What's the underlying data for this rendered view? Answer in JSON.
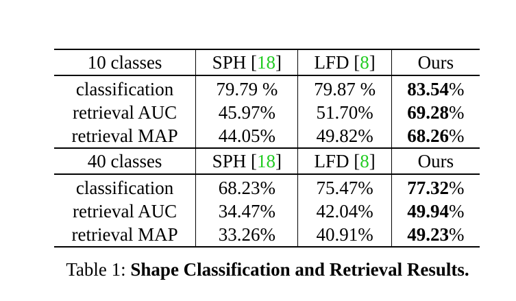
{
  "tables": [
    {
      "header": {
        "label": "10 classes",
        "sph": "SPH [",
        "sph_ref": "18",
        "sph_close": "]",
        "lfd": "LFD [",
        "lfd_ref": "8",
        "lfd_close": "]",
        "ours": "Ours"
      },
      "rows": [
        {
          "label": "classification",
          "sph": "79.79 %",
          "lfd": "79.87 %",
          "ours_num": "83.54",
          "ours_pct": "%"
        },
        {
          "label": "retrieval AUC",
          "sph": "45.97%",
          "lfd": "51.70%",
          "ours_num": "69.28",
          "ours_pct": "%"
        },
        {
          "label": "retrieval MAP",
          "sph": "44.05%",
          "lfd": "49.82%",
          "ours_num": "68.26",
          "ours_pct": "%"
        }
      ]
    },
    {
      "header": {
        "label": "40 classes",
        "sph": "SPH [",
        "sph_ref": "18",
        "sph_close": "]",
        "lfd": "LFD [",
        "lfd_ref": "8",
        "lfd_close": "]",
        "ours": "Ours"
      },
      "rows": [
        {
          "label": "classification",
          "sph": "68.23%",
          "lfd": "75.47%",
          "ours_num": "77.32",
          "ours_pct": "%"
        },
        {
          "label": "retrieval AUC",
          "sph": "34.47%",
          "lfd": "42.04%",
          "ours_num": "49.94",
          "ours_pct": "%"
        },
        {
          "label": "retrieval MAP",
          "sph": "33.26%",
          "lfd": "40.91%",
          "ours_num": "49.23",
          "ours_pct": "%"
        }
      ]
    }
  ],
  "caption": {
    "prefix": "Table 1: ",
    "title": "Shape Classification and Retrieval Results."
  },
  "colors": {
    "citation": "#22cc22"
  }
}
